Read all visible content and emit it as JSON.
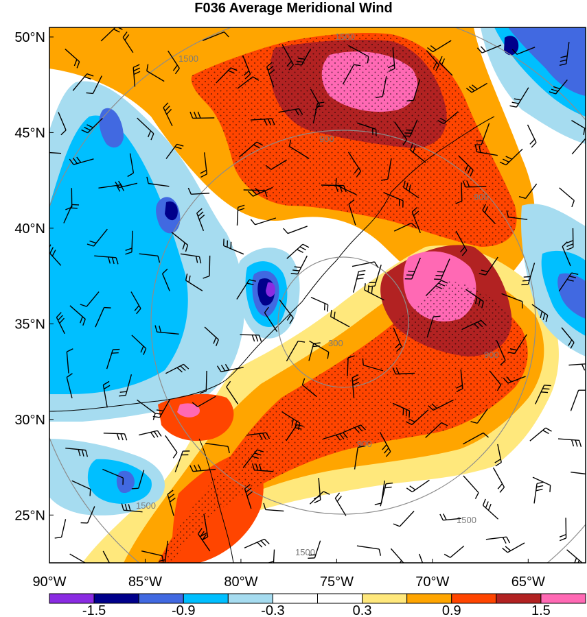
{
  "title": "F036 Average Meridional Wind",
  "map": {
    "lon_range": [
      -90,
      -62
    ],
    "lat_range": [
      22.5,
      50.5
    ],
    "lat_labels": [
      "50°N",
      "45°N",
      "40°N",
      "35°N",
      "30°N",
      "25°N"
    ],
    "lat_values": [
      50,
      45,
      40,
      35,
      30,
      25
    ],
    "lon_labels": [
      "90°W",
      "85°W",
      "80°W",
      "75°W",
      "70°W",
      "65°W"
    ],
    "lon_values": [
      -90,
      -85,
      -80,
      -75,
      -70,
      -65
    ],
    "range_ring_labels": [
      "1500",
      "1500",
      "900",
      "900",
      "300",
      "900",
      "900",
      "1500",
      "1500",
      "1500"
    ]
  },
  "colorbar": {
    "colors": [
      "#8a2be2",
      "#00008b",
      "#4169e1",
      "#00bfff",
      "#a6dcf0",
      "#ffffff",
      "#ffffff",
      "#ffe87c",
      "#ffa500",
      "#ff4500",
      "#b22222",
      "#ff69b4"
    ],
    "labels": [
      "-1.5",
      "-0.9",
      "-0.3",
      "0.3",
      "0.9",
      "1.5"
    ]
  },
  "field_colors": {
    "neg_strong": "#4169e1",
    "neg_mid": "#00bfff",
    "neg_weak": "#a6dcf0",
    "neutral": "#ffffff",
    "pos_weak": "#ffe87c",
    "pos_mid": "#ffa500",
    "pos_strong": "#ff4500",
    "pos_stronger": "#b22222",
    "pos_max": "#ff69b4",
    "neg_max": "#00008b",
    "neg_extreme": "#8a2be2"
  }
}
